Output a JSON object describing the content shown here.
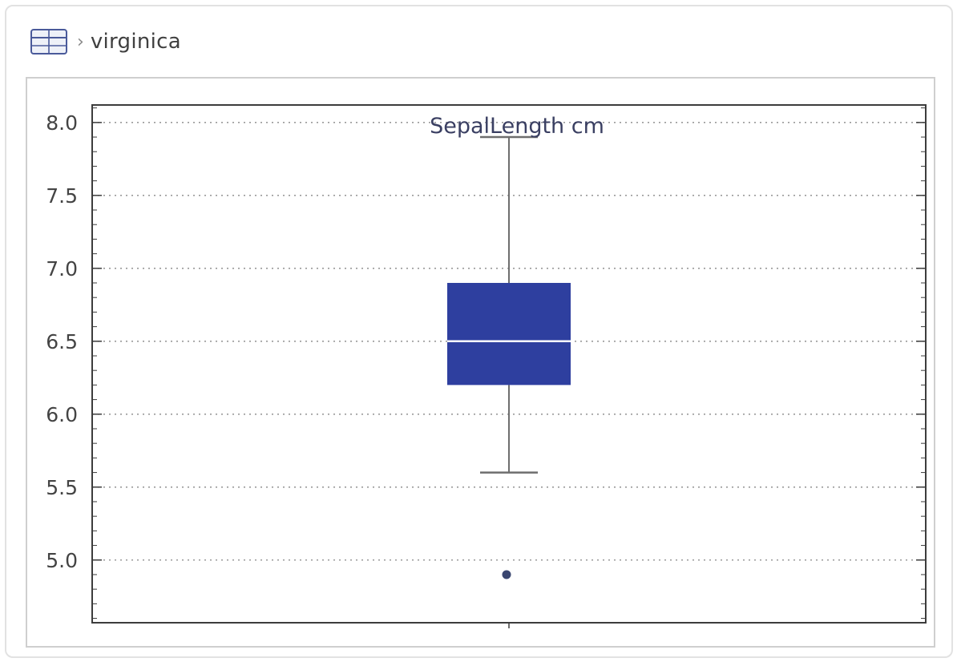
{
  "breadcrumb": {
    "icon": "table-icon",
    "separator": "›",
    "label": "virginica"
  },
  "colors": {
    "box_fill": "#2e3f9f",
    "median_line": "#ffffff",
    "whisker": "#6e6e6e",
    "outlier": "#3a4670",
    "grid": "#9a9a9a",
    "frame": "#3c3c3c",
    "tick_label": "#444444",
    "title_text": "#3a3f62"
  },
  "chart_data": {
    "type": "box",
    "title": "SepalLength cm",
    "xlabel": "",
    "ylabel": "",
    "ylim": [
      4.57,
      8.12
    ],
    "yticks": [
      5.0,
      5.5,
      6.0,
      6.5,
      7.0,
      7.5,
      8.0
    ],
    "ytick_labels": [
      "5.0",
      "5.5",
      "6.0",
      "6.5",
      "7.0",
      "7.5",
      "8.0"
    ],
    "grid": true,
    "boxes": [
      {
        "whisker_low": 5.6,
        "q1": 6.2,
        "median": 6.5,
        "q3": 6.9,
        "whisker_high": 7.9,
        "outliers": [
          4.9
        ]
      }
    ]
  }
}
